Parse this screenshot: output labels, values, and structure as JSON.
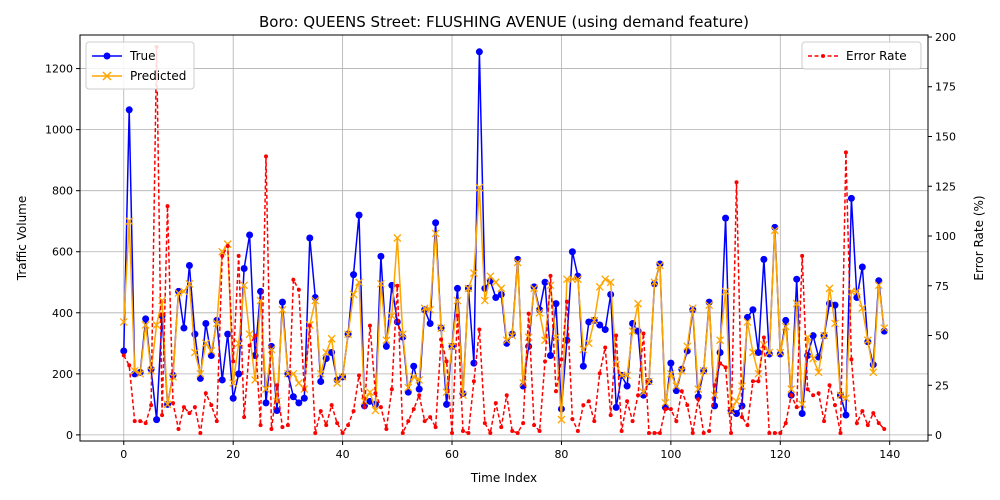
{
  "chart_data": {
    "type": "line",
    "title": "Boro: QUEENS Street: FLUSHING AVENUE (using demand feature)",
    "xlabel": "Time Index",
    "ylabel_left": "Traffic Volume",
    "ylabel_right": "Error Rate (%)",
    "xlim": [
      -8,
      147
    ],
    "ylim_left": [
      -20,
      1310
    ],
    "ylim_right": [
      -3,
      201
    ],
    "x_ticks": [
      0,
      20,
      40,
      60,
      80,
      100,
      120,
      140
    ],
    "y_ticks_left": [
      0,
      200,
      400,
      600,
      800,
      1000,
      1200
    ],
    "y_ticks_right": [
      0,
      25,
      50,
      75,
      100,
      125,
      150,
      175,
      200
    ],
    "grid": true,
    "legend_left_position": "upper-left",
    "legend_right_position": "upper-right",
    "series": [
      {
        "name": "True",
        "axis": "left",
        "color": "#0000ff",
        "style": "solid",
        "marker": "circle",
        "values": [
          275,
          1065,
          200,
          205,
          380,
          215,
          50,
          390,
          100,
          195,
          470,
          350,
          555,
          330,
          185,
          365,
          260,
          375,
          180,
          330,
          120,
          200,
          545,
          655,
          260,
          470,
          105,
          290,
          80,
          435,
          200,
          125,
          105,
          120,
          645,
          450,
          175,
          250,
          270,
          180,
          190,
          330,
          525,
          720,
          95,
          110,
          100,
          585,
          290,
          490,
          370,
          320,
          140,
          225,
          150,
          410,
          365,
          695,
          350,
          100,
          290,
          480,
          135,
          480,
          235,
          1255,
          480,
          505,
          450,
          460,
          300,
          330,
          575,
          160,
          290,
          485,
          410,
          500,
          260,
          430,
          85,
          310,
          600,
          520,
          225,
          370,
          375,
          360,
          345,
          460,
          90,
          195,
          160,
          365,
          340,
          130,
          175,
          495,
          560,
          90,
          235,
          145,
          215,
          275,
          410,
          125,
          210,
          435,
          95,
          270,
          710,
          80,
          70,
          95,
          385,
          410,
          270,
          575,
          265,
          680,
          265,
          375,
          130,
          510,
          70,
          260,
          325,
          255,
          325,
          430,
          425,
          130,
          65,
          775,
          450,
          550,
          305,
          230,
          505,
          340
        ]
      },
      {
        "name": "Predicted",
        "axis": "left",
        "color": "#ffa500",
        "style": "solid",
        "marker": "x",
        "values": [
          370,
          700,
          210,
          200,
          360,
          210,
          360,
          440,
          100,
          190,
          465,
          470,
          495,
          270,
          200,
          300,
          275,
          365,
          600,
          625,
          170,
          300,
          490,
          330,
          180,
          440,
          150,
          280,
          110,
          410,
          200,
          200,
          170,
          150,
          360,
          440,
          200,
          270,
          315,
          170,
          190,
          330,
          460,
          500,
          110,
          140,
          80,
          495,
          310,
          390,
          645,
          330,
          155,
          190,
          180,
          415,
          410,
          660,
          350,
          140,
          290,
          440,
          130,
          480,
          530,
          810,
          440,
          520,
          500,
          480,
          310,
          325,
          565,
          170,
          320,
          480,
          400,
          310,
          490,
          320,
          50,
          510,
          510,
          510,
          280,
          300,
          375,
          485,
          510,
          500,
          230,
          195,
          195,
          340,
          430,
          140,
          175,
          500,
          555,
          105,
          200,
          160,
          210,
          290,
          415,
          150,
          210,
          425,
          130,
          310,
          470,
          80,
          110,
          160,
          370,
          270,
          200,
          295,
          270,
          670,
          270,
          355,
          150,
          430,
          100,
          320,
          250,
          205,
          325,
          480,
          365,
          130,
          120,
          470,
          470,
          415,
          310,
          205,
          490,
          350
        ]
      },
      {
        "name": "Error Rate",
        "axis": "right",
        "color": "#ff0000",
        "style": "dashed",
        "marker": "dot",
        "values": [
          40,
          35,
          7,
          7,
          6,
          15,
          195,
          10,
          115,
          16,
          3,
          14,
          11,
          14,
          1,
          21,
          15,
          7,
          90,
          95,
          37,
          90,
          9,
          45,
          50,
          5,
          140,
          3,
          25,
          4,
          5,
          78,
          73,
          23,
          55,
          1,
          12,
          5,
          15,
          6,
          1,
          5,
          12,
          30,
          14,
          55,
          21,
          14,
          3,
          23,
          75,
          1,
          7,
          13,
          20,
          7,
          9,
          4,
          48,
          37,
          1,
          60,
          2,
          1,
          27,
          53,
          6,
          1,
          16,
          4,
          20,
          2,
          1,
          6,
          61,
          5,
          2,
          37,
          80,
          22,
          38,
          67,
          8,
          2,
          15,
          17,
          7,
          31,
          44,
          10,
          50,
          2,
          17,
          7,
          20,
          51,
          1,
          1,
          1,
          13,
          13,
          7,
          22,
          15,
          1,
          18,
          1,
          2,
          25,
          36,
          34,
          1,
          127,
          9,
          5,
          27,
          27,
          49,
          1,
          1,
          1,
          6,
          20,
          14,
          90,
          23,
          20,
          21,
          7,
          25,
          15,
          1,
          142,
          38,
          6,
          12,
          5,
          11,
          6,
          3
        ]
      }
    ]
  }
}
